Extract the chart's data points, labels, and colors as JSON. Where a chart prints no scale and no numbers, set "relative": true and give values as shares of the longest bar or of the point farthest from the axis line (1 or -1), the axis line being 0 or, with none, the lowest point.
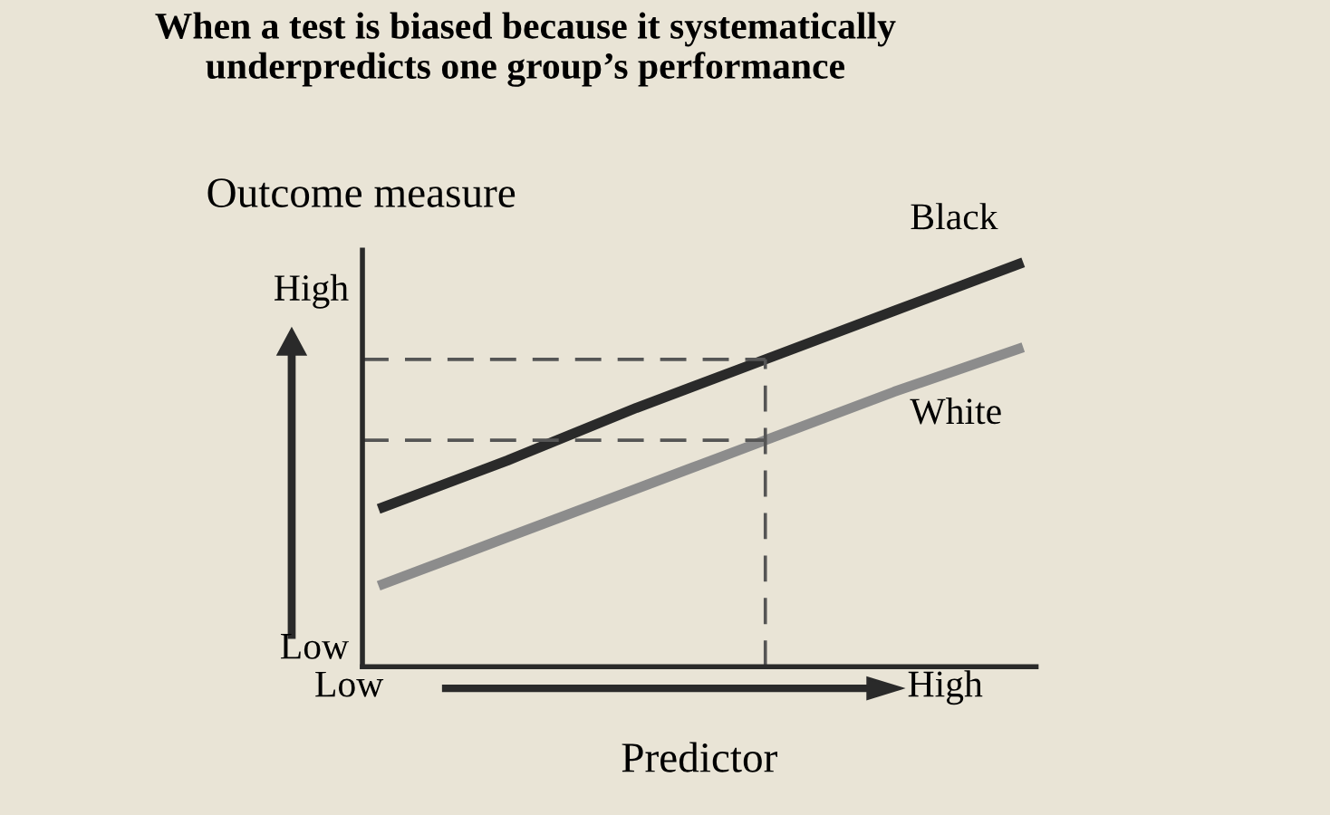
{
  "chart_data": {
    "type": "line",
    "title": "When a test is biased because it systematically\nunderpredicts one group’s performance",
    "ylabel": "Outcome measure",
    "xlabel": "Predictor",
    "relative": true,
    "legend": false,
    "grid": false,
    "marker": "none",
    "line_style": "solid",
    "tick_labels": false,
    "categories": [
      null,
      null,
      null,
      null,
      null,
      null
    ],
    "annotations": [
      "High",
      "Low",
      "Low",
      "High"
    ],
    "series": [
      {
        "name": "Black",
        "color": "#2a2a2a",
        "values": [
          0.39,
          0.51,
          0.64,
          0.76,
          0.88,
          1
        ]
      },
      {
        "name": "White",
        "color": "#8c8c8c",
        "values": [
          0.2,
          0.32,
          0.44,
          0.56,
          0.68,
          0.79
        ]
      }
    ],
    "ref_lines": [
      {
        "axis": "y",
        "value": 0.76,
        "color": "#555555",
        "line_style": "dashed"
      },
      {
        "axis": "y",
        "value": 0.56,
        "color": "#555555",
        "line_style": "dashed"
      }
    ]
  }
}
